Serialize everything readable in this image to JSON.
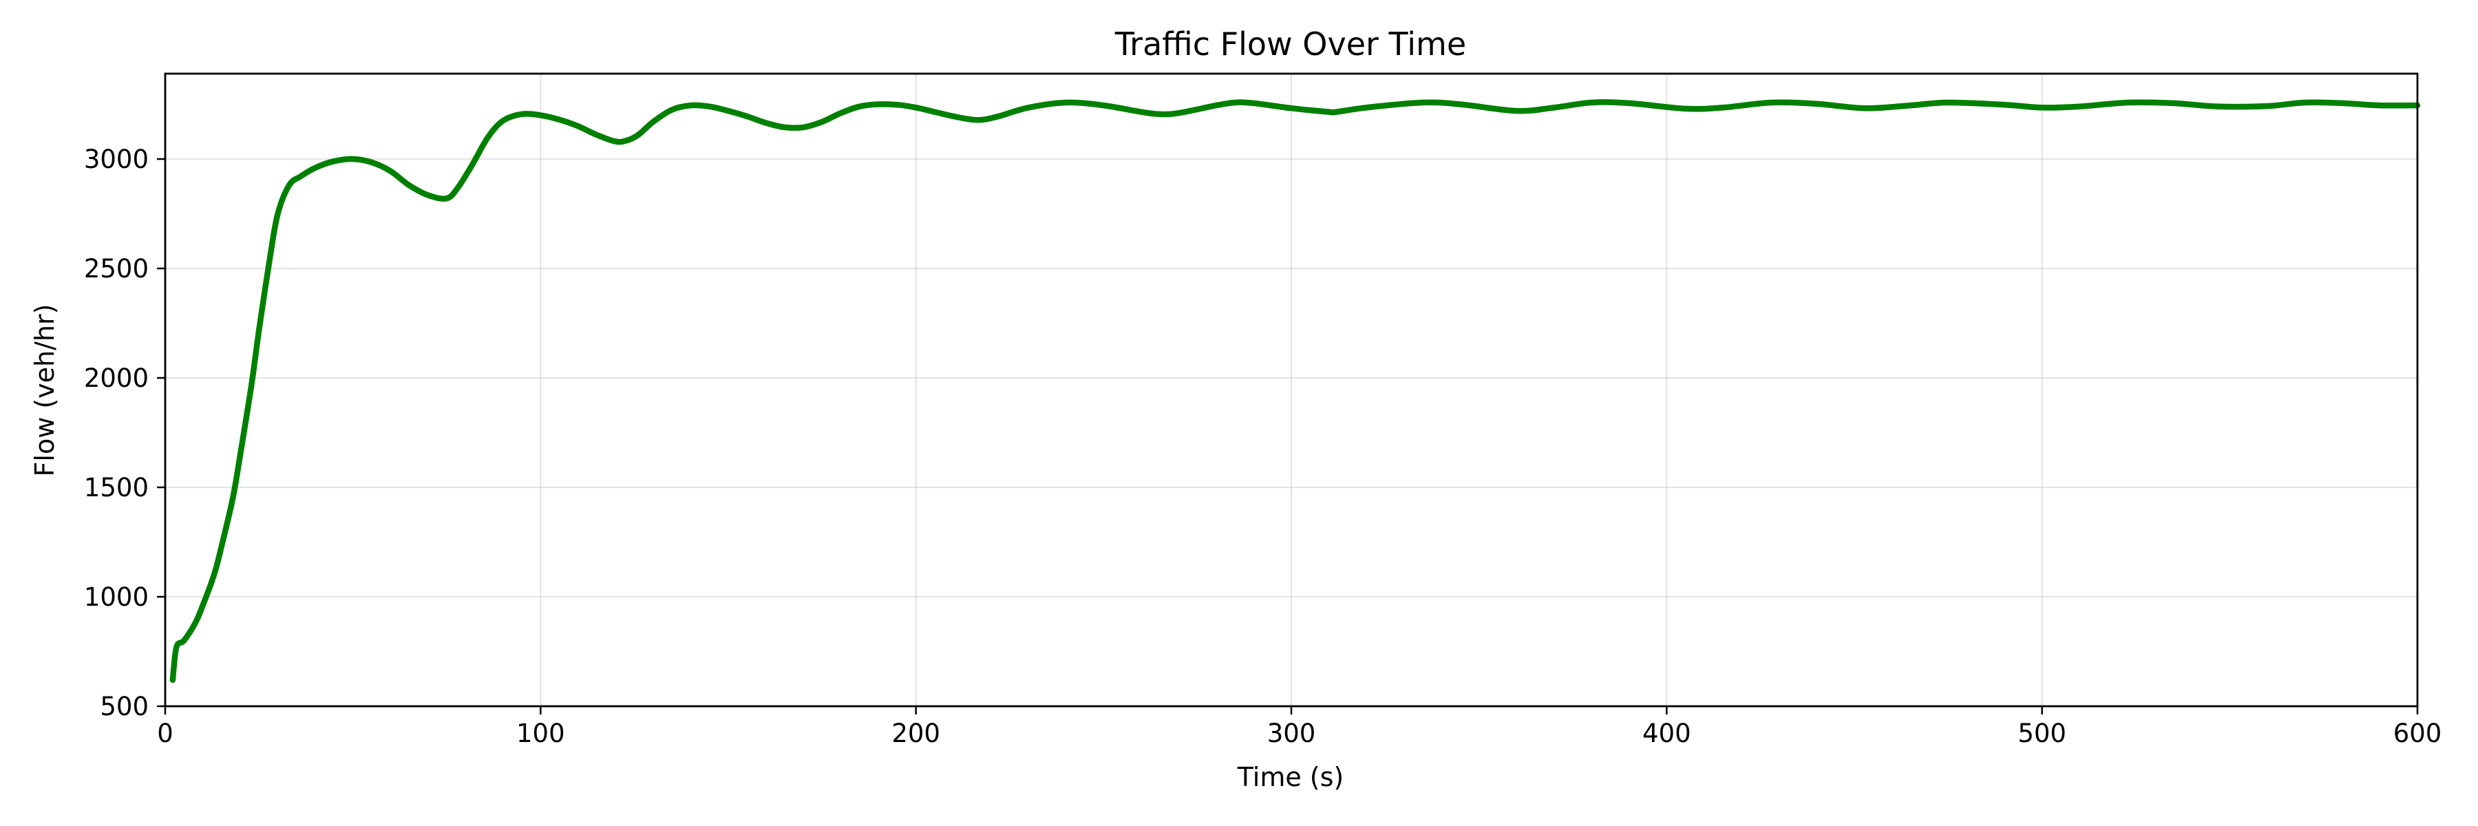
{
  "chart_data": {
    "type": "line",
    "title": "Traffic Flow Over Time",
    "xlabel": "Time (s)",
    "ylabel": "Flow (veh/hr)",
    "xlim": [
      0,
      600
    ],
    "ylim": [
      500,
      3390
    ],
    "xticks": [
      0,
      100,
      200,
      300,
      400,
      500,
      600
    ],
    "yticks": [
      500,
      1000,
      1500,
      2000,
      2500,
      3000
    ],
    "grid": true,
    "legend": "none",
    "series": [
      {
        "color": "#008000",
        "x": [
          2,
          3,
          5,
          8,
          10,
          13,
          15,
          18,
          20,
          23,
          25,
          28,
          30,
          33,
          36,
          40,
          45,
          50,
          55,
          60,
          65,
          70,
          75,
          78,
          82,
          86,
          90,
          95,
          100,
          105,
          110,
          115,
          120,
          123,
          126,
          130,
          135,
          140,
          145,
          150,
          155,
          160,
          165,
          170,
          175,
          180,
          185,
          190,
          195,
          200,
          205,
          210,
          215,
          218,
          222,
          230,
          240,
          250,
          260,
          265,
          270,
          280,
          285,
          290,
          300,
          310,
          312,
          320,
          335,
          345,
          360,
          370,
          380,
          390,
          405,
          415,
          428,
          440,
          453,
          465,
          475,
          490,
          500,
          510,
          523,
          535,
          547,
          560,
          570,
          580,
          590,
          600
        ],
        "y": [
          620,
          770,
          800,
          880,
          960,
          1100,
          1230,
          1450,
          1650,
          1970,
          2220,
          2560,
          2750,
          2880,
          2920,
          2960,
          2990,
          3000,
          2985,
          2945,
          2880,
          2835,
          2820,
          2870,
          2980,
          3100,
          3175,
          3205,
          3200,
          3180,
          3150,
          3110,
          3080,
          3085,
          3110,
          3170,
          3225,
          3245,
          3240,
          3220,
          3195,
          3165,
          3145,
          3145,
          3170,
          3210,
          3240,
          3250,
          3248,
          3235,
          3215,
          3195,
          3180,
          3180,
          3195,
          3235,
          3258,
          3245,
          3215,
          3205,
          3210,
          3245,
          3258,
          3255,
          3232,
          3215,
          3215,
          3235,
          3258,
          3250,
          3220,
          3235,
          3258,
          3255,
          3230,
          3235,
          3258,
          3252,
          3232,
          3245,
          3258,
          3248,
          3235,
          3240,
          3258,
          3255,
          3240,
          3242,
          3258,
          3255,
          3245,
          3245
        ]
      }
    ]
  }
}
